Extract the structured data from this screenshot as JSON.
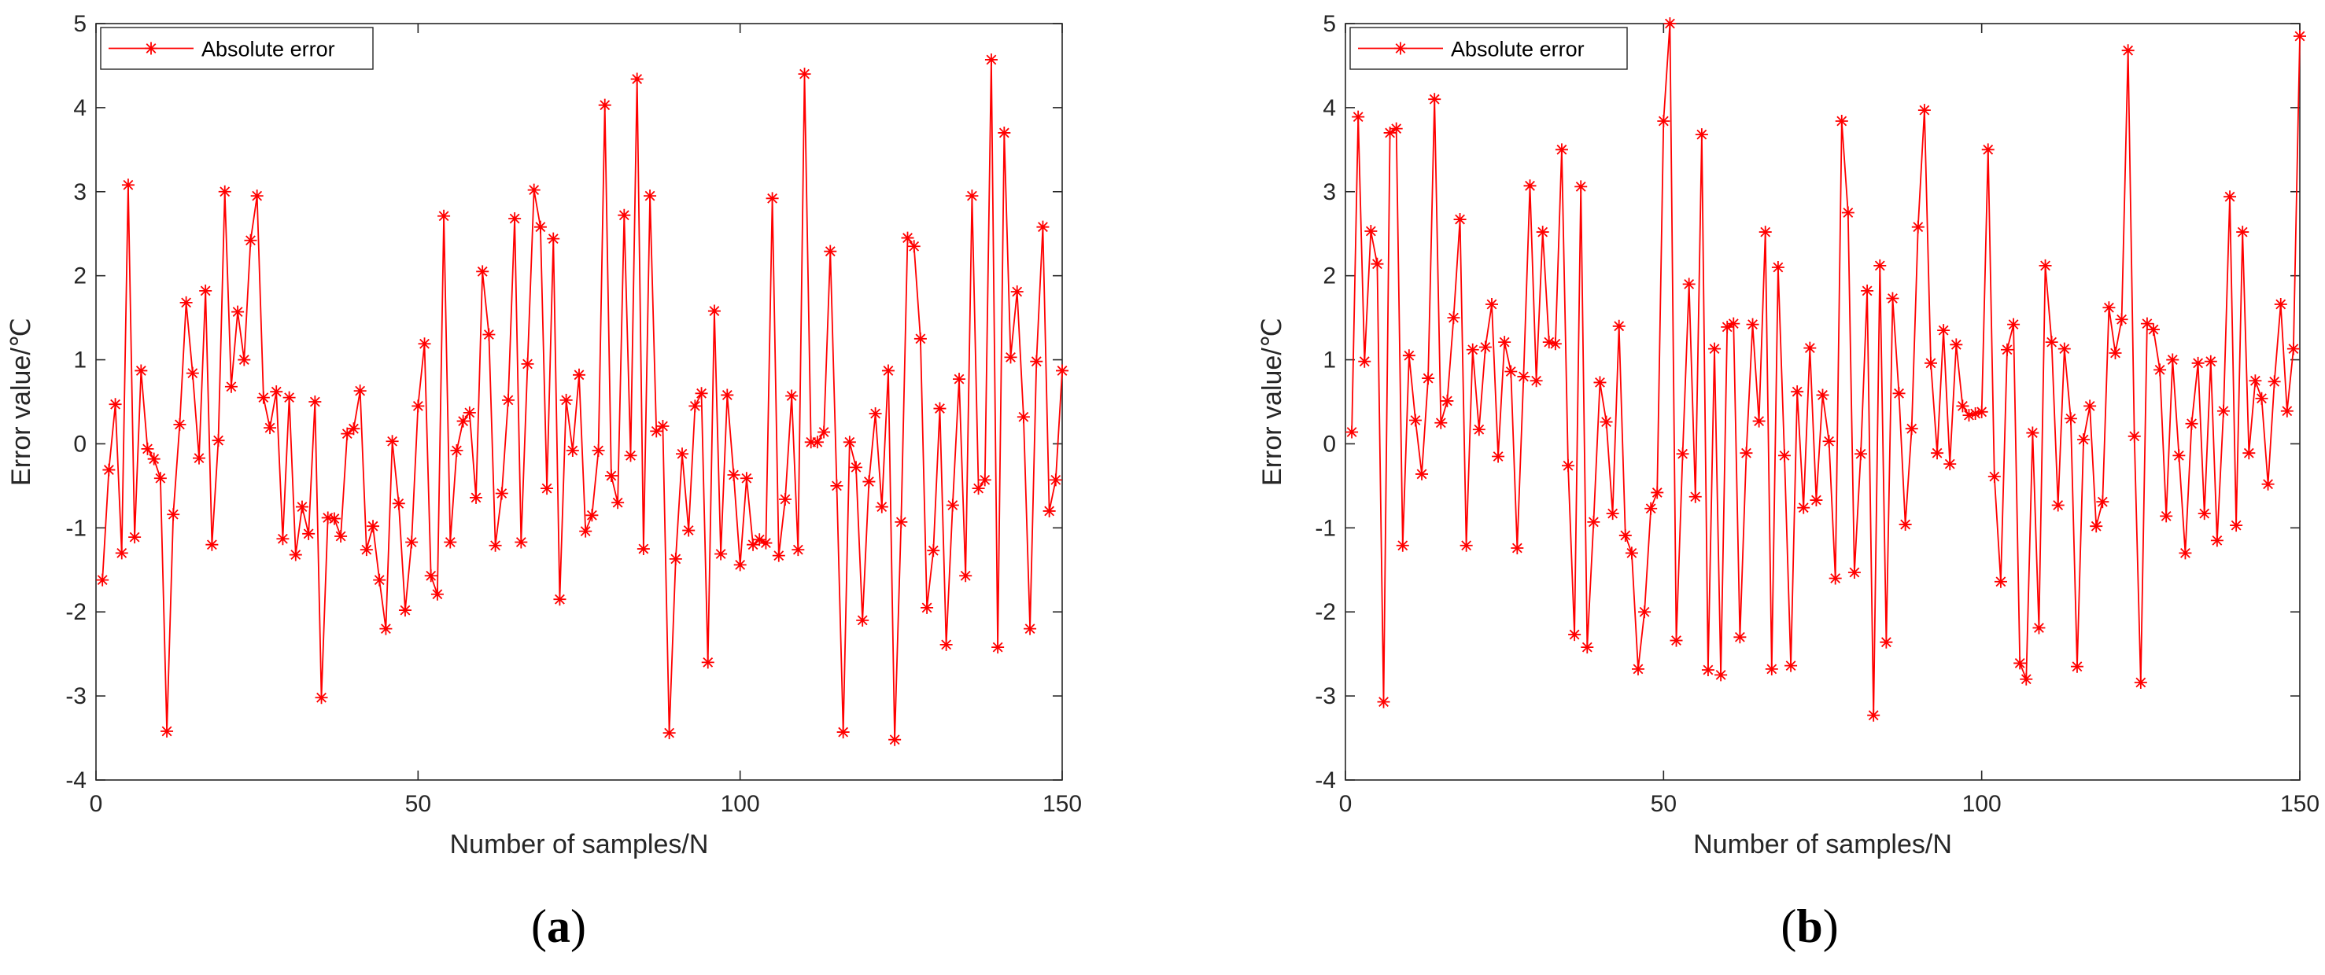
{
  "chart_data": [
    {
      "type": "line",
      "panel": "a",
      "caption_letter": "a",
      "xlabel": "Number of samples/N",
      "ylabel": "Error value/℃",
      "xlim": [
        0,
        150
      ],
      "ylim": [
        -4,
        5
      ],
      "xticks": [
        "0",
        "50",
        "100",
        "150"
      ],
      "yticks": [
        "-4",
        "-3",
        "-2",
        "-1",
        "0",
        "1",
        "2",
        "3",
        "4",
        "5"
      ],
      "legend": "Absolute error",
      "legend_position": "top-left",
      "color": "#ff0000",
      "marker": "asterisk",
      "series": [
        {
          "name": "Absolute error",
          "values": [
            -1.62,
            -0.31,
            0.47,
            -1.3,
            3.08,
            -1.11,
            0.87,
            -0.06,
            -0.18,
            -0.41,
            -3.42,
            -0.84,
            0.23,
            1.68,
            0.84,
            -0.17,
            1.82,
            -1.2,
            0.04,
            3.0,
            0.68,
            1.57,
            1.0,
            2.42,
            2.95,
            0.55,
            0.19,
            0.62,
            -1.13,
            0.55,
            -1.32,
            -0.75,
            -1.07,
            0.5,
            -3.02,
            -0.88,
            -0.89,
            -1.1,
            0.12,
            0.18,
            0.63,
            -1.26,
            -0.98,
            -1.62,
            -2.2,
            0.03,
            -0.71,
            -1.98,
            -1.17,
            0.45,
            1.19,
            -1.57,
            -1.79,
            2.71,
            -1.17,
            -0.08,
            0.27,
            0.37,
            -0.64,
            2.05,
            1.3,
            -1.21,
            -0.59,
            0.52,
            2.68,
            -1.17,
            0.95,
            3.02,
            2.58,
            -0.53,
            2.44,
            -1.85,
            0.52,
            -0.08,
            0.82,
            -1.04,
            -0.85,
            -0.08,
            4.03,
            -0.38,
            -0.7,
            2.72,
            -0.14,
            4.34,
            -1.25,
            2.95,
            0.15,
            0.21,
            -3.44,
            -1.37,
            -0.12,
            -1.03,
            0.45,
            0.6,
            -2.6,
            1.58,
            -1.31,
            0.58,
            -0.37,
            -1.44,
            -0.41,
            -1.2,
            -1.14,
            -1.18,
            2.92,
            -1.33,
            -0.66,
            0.57,
            -1.26,
            4.4,
            0.02,
            0.02,
            0.14,
            2.29,
            -0.5,
            -3.43,
            0.02,
            -0.28,
            -2.1,
            -0.45,
            0.36,
            -0.75,
            0.87,
            -3.52,
            -0.93,
            2.45,
            2.35,
            1.25,
            -1.95,
            -1.27,
            0.42,
            -2.39,
            -0.73,
            0.77,
            -1.57,
            2.95,
            -0.53,
            -0.43,
            4.57,
            -2.42,
            3.7,
            1.03,
            1.81,
            0.32,
            -2.2,
            0.98,
            2.58,
            -0.8,
            -0.43,
            0.87
          ]
        }
      ]
    },
    {
      "type": "line",
      "panel": "b",
      "caption_letter": "b",
      "xlabel": "Number of samples/N",
      "ylabel": "Error value/℃",
      "xlim": [
        0,
        150
      ],
      "ylim": [
        -4,
        5
      ],
      "xticks": [
        "0",
        "50",
        "100",
        "150"
      ],
      "yticks": [
        "-4",
        "-3",
        "-2",
        "-1",
        "0",
        "1",
        "2",
        "3",
        "4",
        "5"
      ],
      "legend": "Absolute error",
      "legend_position": "top-left",
      "color": "#ff0000",
      "marker": "asterisk",
      "series": [
        {
          "name": "Absolute error",
          "values": [
            0.14,
            3.89,
            0.98,
            2.53,
            2.14,
            -3.07,
            3.7,
            3.75,
            -1.21,
            1.05,
            0.28,
            -0.36,
            0.78,
            4.1,
            0.25,
            0.51,
            1.5,
            2.67,
            -1.21,
            1.12,
            0.17,
            1.15,
            1.66,
            -0.15,
            1.21,
            0.86,
            -1.24,
            0.8,
            3.07,
            0.75,
            2.52,
            1.21,
            1.19,
            3.5,
            -0.26,
            -2.27,
            3.06,
            -2.42,
            -0.93,
            0.73,
            0.26,
            -0.83,
            1.4,
            -1.09,
            -1.3,
            -2.68,
            -2.0,
            -0.77,
            -0.58,
            3.84,
            5.0,
            -2.34,
            -0.12,
            1.9,
            -0.63,
            3.68,
            -2.69,
            1.13,
            -2.75,
            1.39,
            1.43,
            -2.3,
            -0.11,
            1.42,
            0.27,
            2.52,
            -2.68,
            2.1,
            -0.14,
            -2.64,
            0.62,
            -0.76,
            1.14,
            -0.67,
            0.58,
            0.03,
            -1.6,
            3.84,
            2.75,
            -1.53,
            -0.12,
            1.82,
            -3.23,
            2.12,
            -2.36,
            1.73,
            0.6,
            -0.96,
            0.18,
            2.58,
            3.97,
            0.96,
            -0.11,
            1.35,
            -0.24,
            1.18,
            0.45,
            0.34,
            0.36,
            0.38,
            3.5,
            -0.39,
            -1.64,
            1.12,
            1.42,
            -2.61,
            -2.8,
            0.13,
            -2.19,
            2.12,
            1.21,
            -0.73,
            1.13,
            0.3,
            -2.65,
            0.05,
            0.45,
            -0.98,
            -0.69,
            1.62,
            1.08,
            1.48,
            4.68,
            0.09,
            -2.84,
            1.43,
            1.36,
            0.88,
            -0.86,
            1.0,
            -0.14,
            -1.3,
            0.24,
            0.96,
            -0.83,
            0.98,
            -1.15,
            0.39,
            2.94,
            -0.97,
            2.52,
            -0.11,
            0.75,
            0.54,
            -0.48,
            0.74,
            1.66,
            0.39,
            1.13,
            4.85
          ]
        }
      ]
    }
  ]
}
